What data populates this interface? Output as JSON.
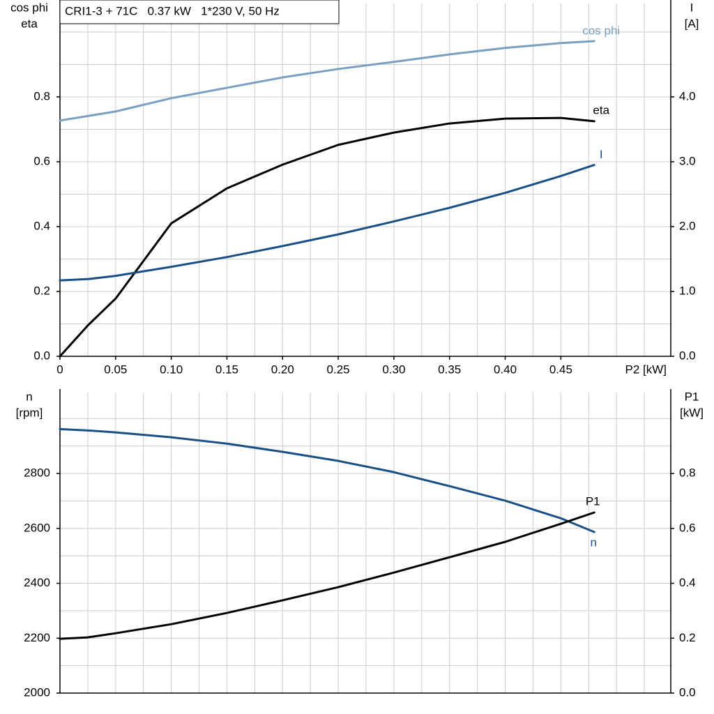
{
  "chart_data": [
    {
      "type": "line",
      "title": "CRI1-3 + 71C   0.37 kW   1*230 V, 50 Hz",
      "x": [
        0,
        0.025,
        0.05,
        0.1,
        0.15,
        0.2,
        0.25,
        0.3,
        0.35,
        0.4,
        0.45,
        0.48
      ],
      "xlim": [
        0,
        0.55
      ],
      "xticks": [
        0,
        0.05,
        {
          "value": 0.1,
          "label": "0.10"
        },
        0.15,
        {
          "value": 0.2,
          "label": "0.20"
        },
        0.25,
        {
          "value": 0.3,
          "label": "0.30"
        },
        0.35,
        {
          "value": 0.4,
          "label": "0.40"
        },
        0.45
      ],
      "xgrid": [
        0.025,
        0.05,
        0.075,
        0.1,
        0.125,
        0.15,
        0.175,
        0.2,
        0.225,
        0.25,
        0.275,
        0.3,
        0.325,
        0.35,
        0.375,
        0.4,
        0.425,
        0.45,
        0.475,
        0.5,
        0.525
      ],
      "xlabel": "P2 [kW]",
      "ylim": [
        0,
        1.088
      ],
      "yticks": [
        {
          "value": 0,
          "label": "0.0"
        },
        0.2,
        0.4,
        0.6,
        0.8
      ],
      "ygrid": [
        0.1,
        0.2,
        0.3,
        0.4,
        0.5,
        0.6,
        0.7,
        0.8,
        0.9,
        1.0
      ],
      "y_label": [
        "cos phi",
        "eta"
      ],
      "y2lim": [
        0,
        5.44
      ],
      "y2ticks": [
        {
          "value": 0,
          "label": "0.0"
        },
        {
          "value": 1,
          "label": "1.0"
        },
        {
          "value": 2,
          "label": "2.0"
        },
        {
          "value": 3,
          "label": "3.0"
        },
        {
          "value": 4,
          "label": "4.0"
        }
      ],
      "y2_label": [
        "I",
        "[A]"
      ],
      "grid": true,
      "series": [
        {
          "name": "cos phi",
          "color": "#7b9fc0",
          "values": [
            0.727,
            0.741,
            0.755,
            0.796,
            0.828,
            0.86,
            0.886,
            0.908,
            0.931,
            0.951,
            0.966,
            0.972
          ]
        },
        {
          "name": "eta",
          "color": "#000000",
          "values": [
            0,
            0.095,
            0.178,
            0.41,
            0.518,
            0.591,
            0.652,
            0.69,
            0.718,
            0.733,
            0.735,
            0.725
          ]
        },
        {
          "name": "I",
          "color": "#1a4f86",
          "axis": "y2",
          "values": [
            1.17,
            1.19,
            1.24,
            1.38,
            1.53,
            1.7,
            1.88,
            2.08,
            2.29,
            2.52,
            2.78,
            2.95
          ]
        }
      ]
    },
    {
      "type": "line",
      "x": [
        0,
        0.025,
        0.05,
        0.1,
        0.15,
        0.2,
        0.25,
        0.3,
        0.35,
        0.4,
        0.45,
        0.48
      ],
      "xlim": [
        0,
        0.55
      ],
      "xgrid": [
        0.025,
        0.05,
        0.075,
        0.1,
        0.125,
        0.15,
        0.175,
        0.2,
        0.225,
        0.25,
        0.275,
        0.3,
        0.325,
        0.35,
        0.375,
        0.4,
        0.425,
        0.45,
        0.475,
        0.5,
        0.525
      ],
      "ylim": [
        2000,
        3095
      ],
      "yticks": [
        2000,
        2200,
        2400,
        2600,
        2800
      ],
      "ygrid": [
        2100,
        2200,
        2300,
        2400,
        2500,
        2600,
        2700,
        2800,
        2900,
        3000
      ],
      "y_label": [
        "n",
        "[rpm]"
      ],
      "y2lim": [
        0,
        1.095
      ],
      "y2ticks": [
        {
          "value": 0,
          "label": "0.0"
        },
        0.2,
        0.4,
        0.6,
        0.8
      ],
      "y2_label": [
        "P1",
        "[kW]"
      ],
      "grid": true,
      "series": [
        {
          "name": "n",
          "color": "#1a4f86",
          "values": [
            2962,
            2957,
            2950,
            2932,
            2909,
            2879,
            2846,
            2805,
            2754,
            2701,
            2637,
            2587
          ]
        },
        {
          "name": "P1",
          "color": "#000000",
          "axis": "y2",
          "values": [
            0.198,
            0.203,
            0.218,
            0.251,
            0.292,
            0.338,
            0.386,
            0.439,
            0.495,
            0.551,
            0.617,
            0.658
          ]
        }
      ]
    }
  ]
}
